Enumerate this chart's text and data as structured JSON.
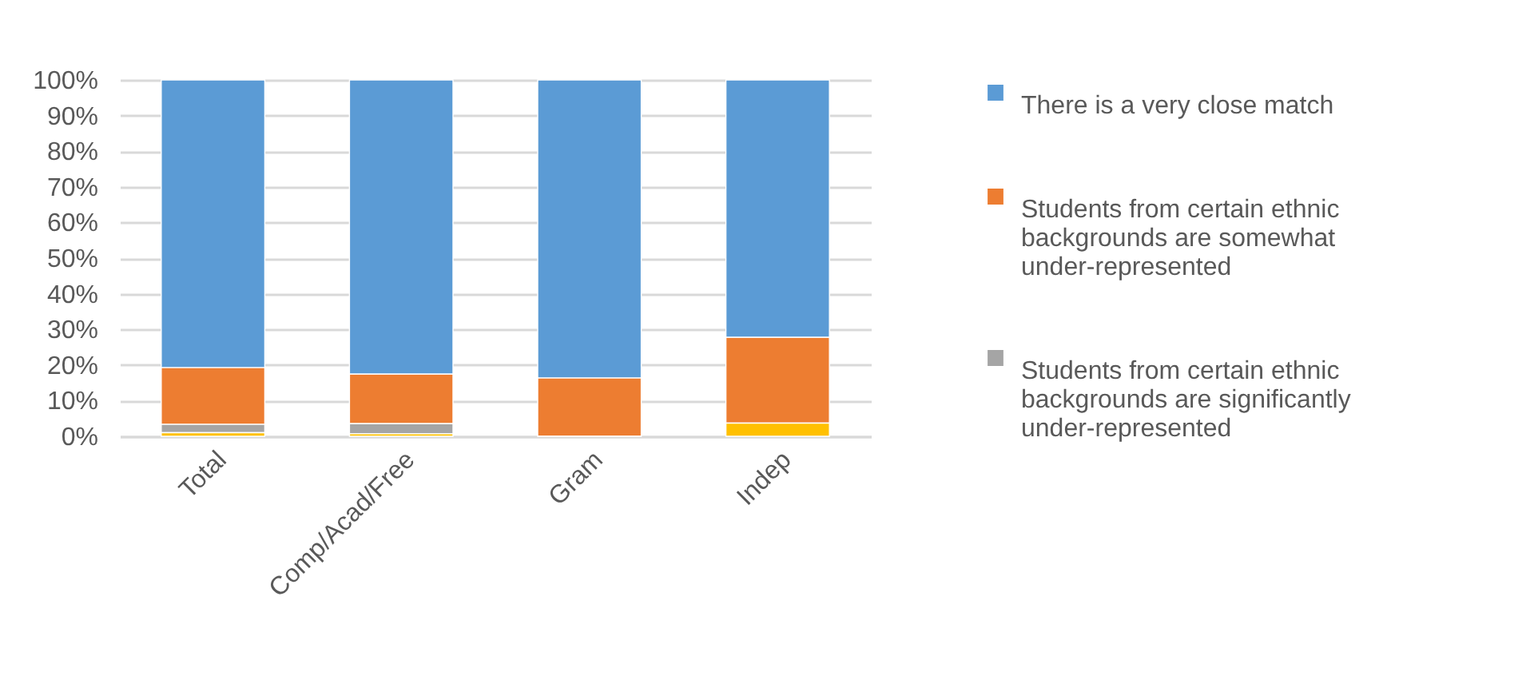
{
  "chart_data": {
    "type": "bar",
    "stacked": true,
    "categories": [
      "Total",
      "Comp/Acad/Free",
      "Gram",
      "Indep"
    ],
    "series": [
      {
        "color": "#ffc000",
        "values": [
          1.0,
          0.7,
          0,
          3.7
        ]
      },
      {
        "name": "Students from certain ethnic backgrounds are significantly under-represented",
        "color": "#a5a5a5",
        "values": [
          2.4,
          2.9,
          0,
          0
        ]
      },
      {
        "name": "Students from certain ethnic backgrounds are somewhat under-represented",
        "color": "#ed7d31",
        "values": [
          15.9,
          13.9,
          16.4,
          24.1
        ]
      },
      {
        "name": "There is a very close match",
        "color": "#5b9bd5",
        "values": [
          80.7,
          82.5,
          83.6,
          72.2
        ]
      }
    ],
    "ylim": [
      0,
      100
    ],
    "yticks": [
      {
        "value": 0,
        "label": "0%"
      },
      {
        "value": 10,
        "label": "10%"
      },
      {
        "value": 20,
        "label": "20%"
      },
      {
        "value": 30,
        "label": "30%"
      },
      {
        "value": 40,
        "label": "40%"
      },
      {
        "value": 50,
        "label": "50%"
      },
      {
        "value": 60,
        "label": "60%"
      },
      {
        "value": 70,
        "label": "70%"
      },
      {
        "value": 80,
        "label": "80%"
      },
      {
        "value": 90,
        "label": "90%"
      },
      {
        "value": 100,
        "label": "100%"
      }
    ],
    "grid": "y",
    "legend": "right"
  }
}
